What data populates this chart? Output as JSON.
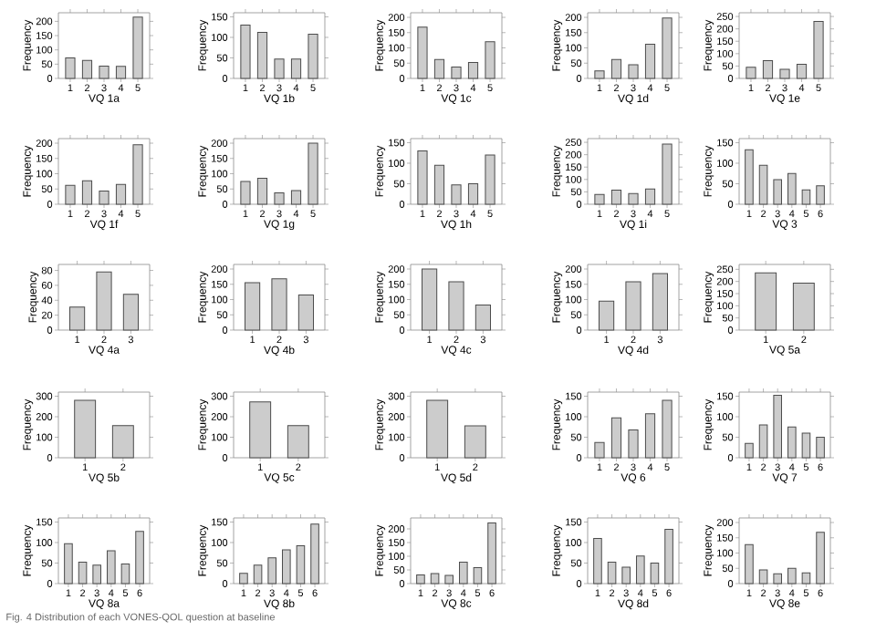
{
  "chart_data": [
    {
      "type": "bar",
      "xlabel": "VQ 1a",
      "ylabel": "Frequency",
      "categories": [
        "1",
        "2",
        "3",
        "4",
        "5"
      ],
      "values": [
        72,
        63,
        43,
        42,
        215
      ],
      "color": "#cccccc",
      "ylim": [
        0,
        230
      ],
      "yticks": [
        0,
        50,
        100,
        150,
        200
      ]
    },
    {
      "type": "bar",
      "xlabel": "VQ 1b",
      "ylabel": "Frequency",
      "categories": [
        "1",
        "2",
        "3",
        "4",
        "5"
      ],
      "values": [
        130,
        112,
        47,
        47,
        108
      ],
      "color": "#cccccc",
      "ylim": [
        0,
        160
      ],
      "yticks": [
        0,
        50,
        100,
        150
      ]
    },
    {
      "type": "bar",
      "xlabel": "VQ 1c",
      "ylabel": "Frequency",
      "categories": [
        "1",
        "2",
        "3",
        "4",
        "5"
      ],
      "values": [
        168,
        62,
        37,
        52,
        120
      ],
      "color": "#cccccc",
      "ylim": [
        0,
        215
      ],
      "yticks": [
        0,
        50,
        100,
        150,
        200
      ]
    },
    {
      "type": "bar",
      "xlabel": "VQ 1d",
      "ylabel": "Frequency",
      "categories": [
        "1",
        "2",
        "3",
        "4",
        "5"
      ],
      "values": [
        25,
        62,
        45,
        112,
        198
      ],
      "color": "#cccccc",
      "ylim": [
        0,
        215
      ],
      "yticks": [
        0,
        50,
        100,
        150,
        200
      ]
    },
    {
      "type": "bar",
      "xlabel": "VQ 1e",
      "ylabel": "Frequency",
      "categories": [
        "1",
        "2",
        "3",
        "4",
        "5"
      ],
      "values": [
        45,
        72,
        37,
        57,
        230
      ],
      "color": "#cccccc",
      "ylim": [
        0,
        265
      ],
      "yticks": [
        0,
        50,
        100,
        150,
        200,
        250
      ]
    },
    {
      "type": "bar",
      "xlabel": "VQ 1f",
      "ylabel": "Frequency",
      "categories": [
        "1",
        "2",
        "3",
        "4",
        "5"
      ],
      "values": [
        62,
        77,
        43,
        65,
        195
      ],
      "color": "#cccccc",
      "ylim": [
        0,
        215
      ],
      "yticks": [
        0,
        50,
        100,
        150,
        200
      ]
    },
    {
      "type": "bar",
      "xlabel": "VQ 1g",
      "ylabel": "Frequency",
      "categories": [
        "1",
        "2",
        "3",
        "4",
        "5"
      ],
      "values": [
        75,
        85,
        37,
        45,
        200
      ],
      "color": "#cccccc",
      "ylim": [
        0,
        215
      ],
      "yticks": [
        0,
        50,
        100,
        150,
        200
      ]
    },
    {
      "type": "bar",
      "xlabel": "VQ 1h",
      "ylabel": "Frequency",
      "categories": [
        "1",
        "2",
        "3",
        "4",
        "5"
      ],
      "values": [
        130,
        95,
        47,
        50,
        120
      ],
      "color": "#cccccc",
      "ylim": [
        0,
        160
      ],
      "yticks": [
        0,
        50,
        100,
        150
      ]
    },
    {
      "type": "bar",
      "xlabel": "VQ 1i",
      "ylabel": "Frequency",
      "categories": [
        "1",
        "2",
        "3",
        "4",
        "5"
      ],
      "values": [
        40,
        57,
        43,
        62,
        243
      ],
      "color": "#cccccc",
      "ylim": [
        0,
        265
      ],
      "yticks": [
        0,
        50,
        100,
        150,
        200,
        250
      ]
    },
    {
      "type": "bar",
      "xlabel": "VQ 3",
      "ylabel": "Frequency",
      "categories": [
        "1",
        "2",
        "3",
        "4",
        "5",
        "6"
      ],
      "values": [
        133,
        95,
        60,
        75,
        35,
        45
      ],
      "color": "#cccccc",
      "ylim": [
        0,
        160
      ],
      "yticks": [
        0,
        50,
        100,
        150
      ]
    },
    {
      "type": "bar",
      "xlabel": "VQ 4a",
      "ylabel": "Frequency",
      "categories": [
        "1",
        "2",
        "3"
      ],
      "values": [
        31,
        78,
        48
      ],
      "color": "#cccccc",
      "ylim": [
        0,
        88
      ],
      "yticks": [
        0,
        20,
        40,
        60,
        80
      ]
    },
    {
      "type": "bar",
      "xlabel": "VQ 4b",
      "ylabel": "Frequency",
      "categories": [
        "1",
        "2",
        "3"
      ],
      "values": [
        155,
        168,
        115
      ],
      "color": "#cccccc",
      "ylim": [
        0,
        215
      ],
      "yticks": [
        0,
        50,
        100,
        150,
        200
      ]
    },
    {
      "type": "bar",
      "xlabel": "VQ 4c",
      "ylabel": "Frequency",
      "categories": [
        "1",
        "2",
        "3"
      ],
      "values": [
        200,
        158,
        82
      ],
      "color": "#cccccc",
      "ylim": [
        0,
        215
      ],
      "yticks": [
        0,
        50,
        100,
        150,
        200
      ]
    },
    {
      "type": "bar",
      "xlabel": "VQ 4d",
      "ylabel": "Frequency",
      "categories": [
        "1",
        "2",
        "3"
      ],
      "values": [
        95,
        158,
        185
      ],
      "color": "#cccccc",
      "ylim": [
        0,
        215
      ],
      "yticks": [
        0,
        50,
        100,
        150,
        200
      ]
    },
    {
      "type": "bar",
      "xlabel": "VQ 5a",
      "ylabel": "Frequency",
      "categories": [
        "1",
        "2"
      ],
      "values": [
        235,
        193
      ],
      "color": "#cccccc",
      "ylim": [
        0,
        270
      ],
      "yticks": [
        0,
        50,
        100,
        150,
        200,
        250
      ]
    },
    {
      "type": "bar",
      "xlabel": "VQ 5b",
      "ylabel": "Frequency",
      "categories": [
        "1",
        "2"
      ],
      "values": [
        280,
        157
      ],
      "color": "#cccccc",
      "ylim": [
        0,
        320
      ],
      "yticks": [
        0,
        100,
        200,
        300
      ]
    },
    {
      "type": "bar",
      "xlabel": "VQ 5c",
      "ylabel": "Frequency",
      "categories": [
        "1",
        "2"
      ],
      "values": [
        272,
        157
      ],
      "color": "#cccccc",
      "ylim": [
        0,
        320
      ],
      "yticks": [
        0,
        100,
        200,
        300
      ]
    },
    {
      "type": "bar",
      "xlabel": "VQ 5d",
      "ylabel": "Frequency",
      "categories": [
        "1",
        "2"
      ],
      "values": [
        280,
        155
      ],
      "color": "#cccccc",
      "ylim": [
        0,
        320
      ],
      "yticks": [
        0,
        100,
        200,
        300
      ]
    },
    {
      "type": "bar",
      "xlabel": "VQ 6",
      "ylabel": "Frequency",
      "categories": [
        "1",
        "2",
        "3",
        "4",
        "5"
      ],
      "values": [
        37,
        97,
        68,
        107,
        140
      ],
      "color": "#cccccc",
      "ylim": [
        0,
        160
      ],
      "yticks": [
        0,
        50,
        100,
        150
      ]
    },
    {
      "type": "bar",
      "xlabel": "VQ 7",
      "ylabel": "Frequency",
      "categories": [
        "1",
        "2",
        "3",
        "4",
        "5",
        "6"
      ],
      "values": [
        35,
        80,
        152,
        75,
        60,
        50
      ],
      "color": "#cccccc",
      "ylim": [
        0,
        160
      ],
      "yticks": [
        0,
        50,
        100,
        150
      ]
    },
    {
      "type": "bar",
      "xlabel": "VQ 8a",
      "ylabel": "Frequency",
      "categories": [
        "1",
        "2",
        "3",
        "4",
        "5",
        "6"
      ],
      "values": [
        97,
        52,
        45,
        80,
        48,
        127
      ],
      "color": "#cccccc",
      "ylim": [
        0,
        160
      ],
      "yticks": [
        0,
        50,
        100,
        150
      ],
      "annotations": [
        "Fig. 4 Distribution of each VONES-QOL question at baseline"
      ]
    },
    {
      "type": "bar",
      "xlabel": "VQ 8b",
      "ylabel": "Frequency",
      "categories": [
        "1",
        "2",
        "3",
        "4",
        "5",
        "6"
      ],
      "values": [
        25,
        45,
        63,
        82,
        92,
        145
      ],
      "color": "#cccccc",
      "ylim": [
        0,
        160
      ],
      "yticks": [
        0,
        50,
        100,
        150
      ]
    },
    {
      "type": "bar",
      "xlabel": "VQ 8c",
      "ylabel": "Frequency",
      "categories": [
        "1",
        "2",
        "3",
        "4",
        "5",
        "6"
      ],
      "values": [
        32,
        37,
        30,
        78,
        58,
        222
      ],
      "color": "#cccccc",
      "ylim": [
        0,
        240
      ],
      "yticks": [
        0,
        50,
        100,
        150,
        200
      ]
    },
    {
      "type": "bar",
      "xlabel": "VQ 8d",
      "ylabel": "Frequency",
      "categories": [
        "1",
        "2",
        "3",
        "4",
        "5",
        "6"
      ],
      "values": [
        110,
        52,
        40,
        67,
        50,
        132
      ],
      "color": "#cccccc",
      "ylim": [
        0,
        160
      ],
      "yticks": [
        0,
        50,
        100,
        150
      ]
    },
    {
      "type": "bar",
      "xlabel": "VQ 8e",
      "ylabel": "Frequency",
      "categories": [
        "1",
        "2",
        "3",
        "4",
        "5",
        "6"
      ],
      "values": [
        128,
        45,
        32,
        50,
        35,
        168
      ],
      "color": "#cccccc",
      "ylim": [
        0,
        215
      ],
      "yticks": [
        0,
        50,
        100,
        150,
        200
      ]
    }
  ]
}
